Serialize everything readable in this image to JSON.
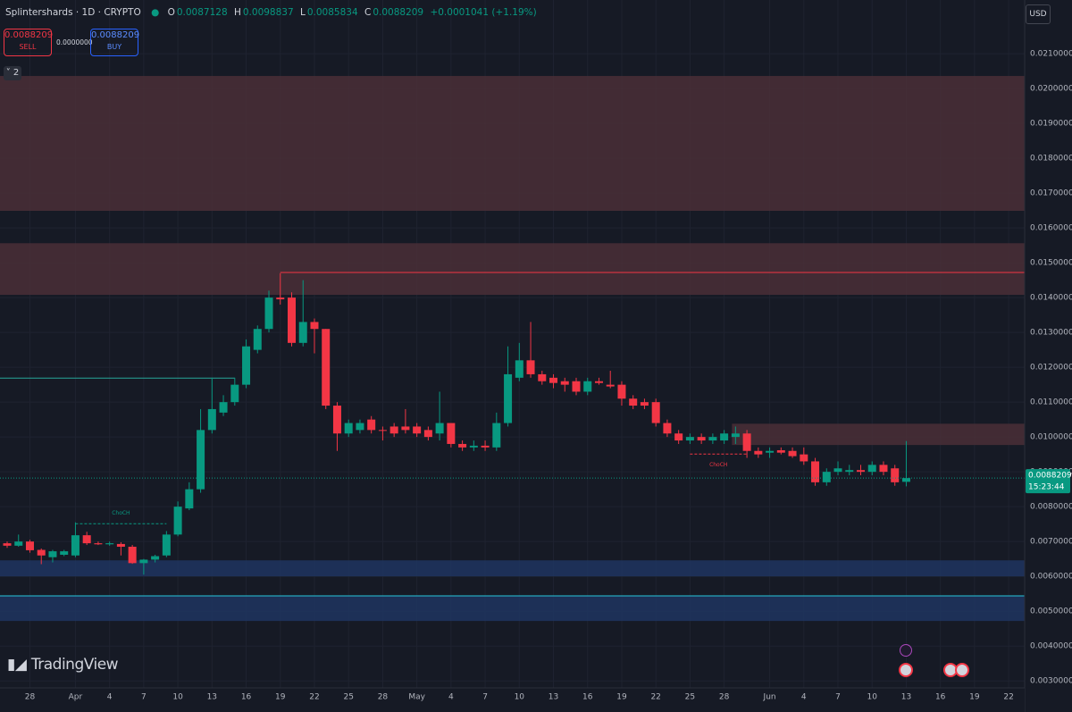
{
  "chart_data": {
    "type": "candlestick",
    "symbol": "Splintershards · 1D · CRYPTO",
    "legend_labels": [
      "O",
      "H",
      "L",
      "C"
    ],
    "change": "+0.0001041 (+1.19%)",
    "sell_label": "SELL",
    "buy_label": "BUY",
    "spread": "0.0000000",
    "currency": "USD",
    "indicator_count": 2,
    "countdown": "15:23:44",
    "brand": "TradingView",
    "categories": [
      null,
      null,
      "28",
      null,
      null,
      null,
      "Apr",
      null,
      null,
      "4",
      null,
      null,
      "7",
      null,
      null,
      "10",
      null,
      null,
      "13",
      null,
      null,
      "16",
      null,
      null,
      "19",
      null,
      null,
      "22",
      null,
      null,
      "25",
      null,
      null,
      "28",
      null,
      null,
      "May",
      null,
      null,
      "4",
      null,
      null,
      "7",
      null,
      null,
      "10",
      null,
      null,
      "13",
      null,
      null,
      "16",
      null,
      null,
      "19",
      null,
      null,
      "22",
      null,
      null,
      "25",
      null,
      null,
      "28",
      null,
      null,
      null,
      "Jun",
      null,
      null,
      "4",
      null,
      null,
      "7",
      null,
      null,
      "10",
      null,
      null,
      "13",
      null,
      null,
      "16",
      null,
      null,
      "19",
      null,
      null,
      "22",
      null
    ],
    "series": [
      {
        "up_color": "#089981",
        "down_color": "#f23645",
        "open": [
          0.00695,
          0.00688,
          0.007,
          0.00676,
          0.00655,
          0.00662,
          0.0066,
          0.00718,
          0.00695,
          0.00692,
          0.00693,
          0.00685,
          0.00638,
          0.00648,
          0.0066,
          0.0072,
          0.00795,
          0.0085,
          0.0102,
          0.0107,
          0.011,
          0.0115,
          0.0125,
          0.0131,
          0.014,
          0.014,
          0.0127,
          0.0133,
          0.0131,
          0.0109,
          0.0101,
          0.0102,
          0.0105,
          0.0102,
          0.0103,
          0.0103,
          0.0103,
          0.0102,
          0.0101,
          0.0104,
          0.0098,
          0.0097,
          0.00975,
          0.0097,
          0.0104,
          0.0117,
          0.0122,
          0.0118,
          0.0117,
          0.0116,
          0.0116,
          0.0113,
          0.0116,
          0.0115,
          0.0115,
          0.0111,
          0.011,
          0.011,
          0.0104,
          0.0101,
          0.0099,
          0.01,
          0.0099,
          0.0099,
          0.01,
          0.0101,
          0.0096,
          0.00955,
          0.00962,
          0.0096,
          0.0095,
          0.0093,
          0.0087,
          0.009,
          0.009,
          0.00905,
          0.009,
          0.0092,
          0.0091,
          0.0087128,
          null,
          null,
          null,
          null,
          null,
          null,
          null,
          null,
          null,
          null
        ],
        "high": [
          0.007,
          0.0072,
          0.00705,
          0.0068,
          0.00676,
          0.00676,
          0.00755,
          0.00728,
          0.007,
          0.007,
          0.00698,
          0.0069,
          0.0065,
          0.00662,
          0.0073,
          0.00815,
          0.0087,
          0.0108,
          0.0117,
          0.0112,
          0.0117,
          0.0128,
          0.0132,
          0.0142,
          0.0147,
          0.01415,
          0.0145,
          0.0134,
          0.0131,
          0.011,
          0.0105,
          0.0105,
          0.0106,
          0.0103,
          0.0104,
          0.0108,
          0.0104,
          0.0103,
          0.0113,
          0.0104,
          0.0099,
          0.0099,
          0.0099,
          0.0107,
          0.0126,
          0.0127,
          0.0133,
          0.0119,
          0.0118,
          0.0117,
          0.0117,
          0.0117,
          0.0117,
          0.0119,
          0.0116,
          0.0112,
          0.0111,
          0.0111,
          0.0105,
          0.0102,
          0.0101,
          0.0101,
          0.0101,
          0.0102,
          0.0103,
          0.0102,
          0.0097,
          0.0097,
          0.0097,
          0.0097,
          0.0097,
          0.0094,
          0.0091,
          0.0093,
          0.0092,
          0.0092,
          0.0093,
          0.0093,
          0.0092,
          0.0098837,
          null,
          null,
          null,
          null,
          null,
          null,
          null,
          null,
          null,
          null
        ],
        "low": [
          0.00682,
          0.00685,
          0.00668,
          0.00635,
          0.0064,
          0.00658,
          0.00655,
          0.0069,
          0.0069,
          0.00688,
          0.0066,
          0.00636,
          0.00605,
          0.0064,
          0.00655,
          0.00715,
          0.0079,
          0.0084,
          0.0101,
          0.0106,
          0.0109,
          0.0114,
          0.0124,
          0.013,
          0.0138,
          0.0126,
          0.0126,
          0.0124,
          0.0108,
          0.0096,
          0.01,
          0.0101,
          0.0101,
          0.0099,
          0.01,
          0.0101,
          0.01,
          0.0099,
          0.0099,
          0.0097,
          0.0096,
          0.0096,
          0.0096,
          0.0096,
          0.0103,
          0.0116,
          0.0117,
          0.0115,
          0.0114,
          0.0113,
          0.0112,
          0.0112,
          0.0115,
          0.0114,
          0.0109,
          0.0108,
          0.0108,
          0.0103,
          0.01,
          0.0098,
          0.0098,
          0.0098,
          0.0098,
          0.0098,
          0.0098,
          0.0094,
          0.0094,
          0.0094,
          0.0095,
          0.0094,
          0.0092,
          0.0086,
          0.0086,
          0.0089,
          0.0089,
          0.0089,
          0.0089,
          0.0089,
          0.0086,
          0.0085834,
          null,
          null,
          null,
          null,
          null,
          null,
          null,
          null,
          null,
          null
        ],
        "close": [
          0.00688,
          0.007,
          0.00675,
          0.0066,
          0.00672,
          0.00672,
          0.00718,
          0.00695,
          0.00692,
          0.00695,
          0.00685,
          0.00638,
          0.00648,
          0.00658,
          0.0072,
          0.008,
          0.0085,
          0.0102,
          0.0108,
          0.011,
          0.0115,
          0.0126,
          0.0131,
          0.014,
          0.01395,
          0.0127,
          0.0133,
          0.0131,
          0.0109,
          0.0101,
          0.0104,
          0.0104,
          0.0102,
          0.01018,
          0.0101,
          0.0102,
          0.0101,
          0.01,
          0.0104,
          0.0098,
          0.0097,
          0.00975,
          0.0097,
          0.0104,
          0.0118,
          0.0122,
          0.0118,
          0.0116,
          0.01155,
          0.0115,
          0.0113,
          0.0116,
          0.01155,
          0.01145,
          0.0111,
          0.0109,
          0.0109,
          0.0104,
          0.0101,
          0.0099,
          0.01,
          0.0099,
          0.01,
          0.0101,
          0.0101,
          0.0096,
          0.0095,
          0.0096,
          0.00955,
          0.00945,
          0.0093,
          0.0087,
          0.009,
          0.0091,
          0.00905,
          0.009,
          0.0092,
          0.009,
          0.0087,
          0.0088209,
          null,
          null,
          null,
          null,
          null,
          null,
          null,
          null,
          null,
          null
        ]
      }
    ],
    "zones": [
      {
        "top": 0.02036,
        "bottom": 0.01649,
        "color": "#4a2f37"
      },
      {
        "top": 0.01556,
        "bottom": 0.01408,
        "color": "#4a2f37"
      },
      {
        "top": 0.01038,
        "bottom": 0.00977,
        "color": "#4a2f37"
      },
      {
        "top": 0.00646,
        "bottom": 0.006,
        "color": "#1f3560"
      },
      {
        "top": 0.00544,
        "bottom": 0.00472,
        "color": "#1f3560"
      }
    ],
    "levels": [
      {
        "value": 0.01472,
        "color": "#f23645"
      },
      {
        "value": 0.01169,
        "color": "#26a69a"
      },
      {
        "value": 0.00544,
        "color": "#26c6da"
      },
      {
        "value": 0.00751,
        "color": "#089981",
        "label": "ChoCH"
      },
      {
        "value": 0.00951,
        "color": "#f23645",
        "label": "ChoCH"
      }
    ],
    "ylim": [
      0.0028,
      0.02254
    ],
    "yticks": [
      {
        "value": 0.003,
        "label": "0.0030000"
      },
      {
        "value": 0.004,
        "label": "0.0040000"
      },
      {
        "value": 0.005,
        "label": "0.0050000"
      },
      {
        "value": 0.006,
        "label": "0.0060000"
      },
      {
        "value": 0.007,
        "label": "0.0070000"
      },
      {
        "value": 0.008,
        "label": "0.0080000"
      },
      {
        "value": 0.009,
        "label": "0.0090000"
      },
      {
        "value": 0.01,
        "label": "0.0100000"
      },
      {
        "value": 0.011,
        "label": "0.0110000"
      },
      {
        "value": 0.012,
        "label": "0.0120000"
      },
      {
        "value": 0.013,
        "label": "0.0130000"
      },
      {
        "value": 0.014,
        "label": "0.0140000"
      },
      {
        "value": 0.015,
        "label": "0.0150000"
      },
      {
        "value": 0.016,
        "label": "0.0160000"
      },
      {
        "value": 0.017,
        "label": "0.0170000"
      },
      {
        "value": 0.018,
        "label": "0.0180000"
      },
      {
        "value": 0.019,
        "label": "0.0190000"
      },
      {
        "value": 0.02,
        "label": "0.0200000"
      },
      {
        "value": 0.021,
        "label": "0.0210000"
      }
    ],
    "grid": true
  }
}
